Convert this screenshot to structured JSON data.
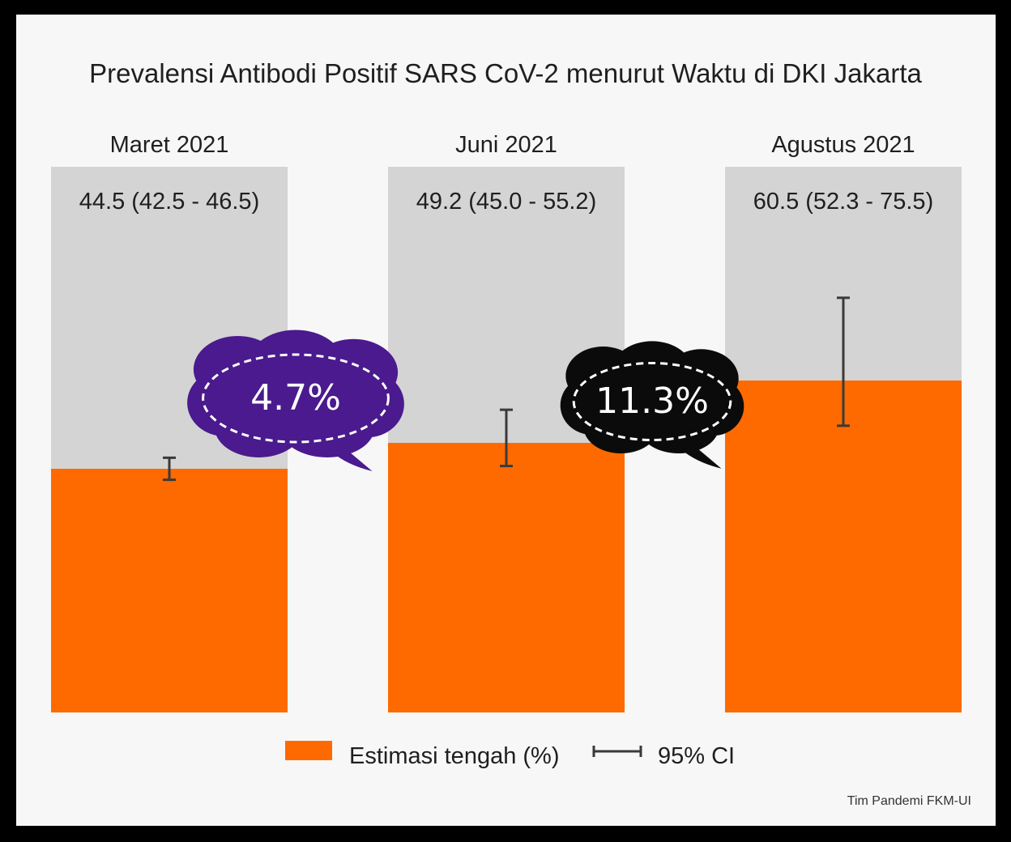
{
  "chart_data": {
    "type": "bar",
    "title": "Prevalensi Antibodi Positif SARS CoV-2 menurut Waktu di DKI Jakarta",
    "categories": [
      "Maret 2021",
      "Juni 2021",
      "Agustus 2021"
    ],
    "series": [
      {
        "name": "Estimasi tengah (%)",
        "values": [
          44.5,
          49.2,
          60.5
        ],
        "ci_low": [
          42.5,
          45.0,
          52.3
        ],
        "ci_high": [
          46.5,
          55.2,
          75.5
        ]
      }
    ],
    "value_labels": [
      "44.5 (42.5 - 46.5)",
      "49.2 (45.0 - 55.2)",
      "60.5 (52.3 - 75.5)"
    ],
    "ylim": [
      0,
      100
    ],
    "annotations": [
      {
        "text": "4.7%",
        "between": [
          "Maret 2021",
          "Juni 2021"
        ],
        "color": "#4a1a8e"
      },
      {
        "text": "11.3%",
        "between": [
          "Juni 2021",
          "Agustus 2021"
        ],
        "color": "#0b0b0b"
      }
    ],
    "legend": {
      "bar_label": "Estimasi tengah (%)",
      "ci_label": "95% CI",
      "position": "bottom"
    },
    "credit": "Tim Pandemi FKM-UI",
    "colors": {
      "bar": "#ff6a00",
      "track": "#d4d4d4",
      "errorbar": "#3a3a3a"
    }
  }
}
